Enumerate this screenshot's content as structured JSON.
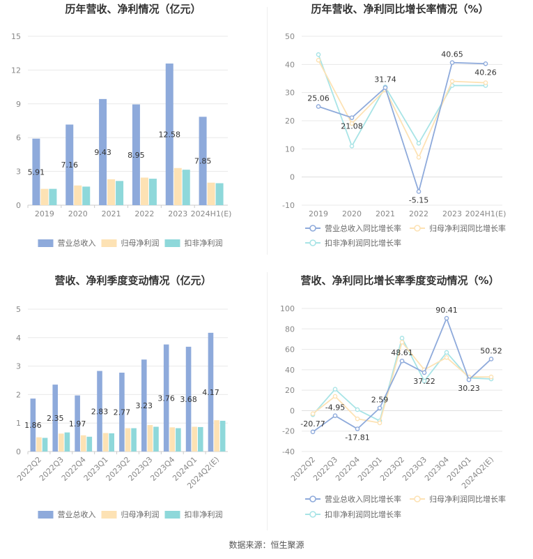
{
  "colors": {
    "revenue": "#8eaadb",
    "net_profit": "#fde2b4",
    "deducted_profit": "#8ed8da",
    "grid": "#e8e8e8",
    "axis": "#cccccc"
  },
  "footer": {
    "source": "数据来源：恒生聚源"
  },
  "chart_data": [
    {
      "id": "annual-bar",
      "type": "bar",
      "title": "历年营收、净利情况（亿元）",
      "categories": [
        "2019",
        "2020",
        "2021",
        "2022",
        "2023",
        "2024H1(E)"
      ],
      "yticks": [
        0,
        3,
        6,
        9,
        12,
        15
      ],
      "ylim": [
        0,
        15
      ],
      "label_series": 0,
      "series": [
        {
          "name": "营业总收入",
          "color": "#8eaadb",
          "values": [
            5.91,
            7.16,
            9.43,
            8.95,
            12.58,
            7.85
          ],
          "labels": [
            "5.91",
            "7.16",
            "9.43",
            "8.95",
            "12.58",
            "7.85"
          ]
        },
        {
          "name": "归母净利润",
          "color": "#fde2b4",
          "values": [
            1.45,
            1.75,
            2.3,
            2.45,
            3.3,
            2.0
          ]
        },
        {
          "name": "扣非净利润",
          "color": "#8ed8da",
          "values": [
            1.45,
            1.65,
            2.15,
            2.35,
            3.15,
            1.95
          ]
        }
      ],
      "legend_position": "bottom"
    },
    {
      "id": "annual-line",
      "type": "line",
      "title": "历年营收、净利同比增长率情况（%）",
      "categories": [
        "2019",
        "2020",
        "2021",
        "2022",
        "2023",
        "2024H1(E)"
      ],
      "yticks": [
        -10,
        0,
        10,
        20,
        30,
        40,
        50
      ],
      "ylim": [
        -10,
        50
      ],
      "label_series": 0,
      "series": [
        {
          "name": "营业总收入同比增长率",
          "color": "#8eaadb",
          "values": [
            25.06,
            21.08,
            31.74,
            -5.15,
            40.65,
            40.26
          ],
          "labels": [
            "25.06",
            "21.08",
            "31.74",
            "-5.15",
            "40.65",
            "40.26"
          ]
        },
        {
          "name": "归母净利润同比增长率",
          "color": "#fde2b4",
          "values": [
            41.5,
            19.0,
            31.0,
            7.0,
            34.0,
            33.5
          ]
        },
        {
          "name": "扣非净利润同比增长率",
          "color": "#a8e4e6",
          "values": [
            43.5,
            11.0,
            32.0,
            12.0,
            32.5,
            32.5
          ]
        }
      ],
      "legend_position": "bottom"
    },
    {
      "id": "quarter-bar",
      "type": "bar",
      "title": "营收、净利季度变动情况（亿元）",
      "categories": [
        "2022Q2",
        "2022Q3",
        "2022Q4",
        "2023Q1",
        "2023Q2",
        "2023Q3",
        "2023Q4",
        "2024Q1",
        "2024Q2(E)"
      ],
      "yticks": [
        0,
        1,
        2,
        3,
        4,
        5
      ],
      "ylim": [
        0,
        5
      ],
      "label_series": 0,
      "series": [
        {
          "name": "营业总收入",
          "color": "#8eaadb",
          "values": [
            1.86,
            2.35,
            1.97,
            2.83,
            2.77,
            3.23,
            3.76,
            3.68,
            4.17
          ],
          "labels": [
            "1.86",
            "2.35",
            "1.97",
            "2.83",
            "2.77",
            "3.23",
            "3.76",
            "3.68",
            "4.17"
          ]
        },
        {
          "name": "归母净利润",
          "color": "#fde2b4",
          "values": [
            0.5,
            0.63,
            0.57,
            0.65,
            0.82,
            0.93,
            0.85,
            0.87,
            1.1
          ]
        },
        {
          "name": "扣非净利润",
          "color": "#8ed8da",
          "values": [
            0.48,
            0.67,
            0.52,
            0.64,
            0.82,
            0.87,
            0.82,
            0.86,
            1.08
          ]
        }
      ],
      "legend_position": "bottom"
    },
    {
      "id": "quarter-line",
      "type": "line",
      "title": "营收、净利同比增长率季度变动情况（%）",
      "categories": [
        "2022Q2",
        "2022Q3",
        "2022Q4",
        "2023Q1",
        "2023Q2",
        "2023Q3",
        "2023Q4",
        "2024Q1",
        "2024Q2(E)"
      ],
      "yticks": [
        -40,
        -20,
        0,
        20,
        40,
        60,
        80,
        100
      ],
      "ylim": [
        -40,
        100
      ],
      "label_series": 0,
      "series": [
        {
          "name": "营业总收入同比增长率",
          "color": "#8eaadb",
          "values": [
            -20.77,
            -4.95,
            -17.81,
            2.59,
            48.61,
            37.22,
            90.41,
            30.23,
            50.52
          ],
          "labels": [
            "-20.77",
            "-4.95",
            "-17.81",
            "2.59",
            "48.61",
            "37.22",
            "90.41",
            "30.23",
            "50.52"
          ]
        },
        {
          "name": "归母净利润同比增长率",
          "color": "#fde2b4",
          "values": [
            -3,
            14,
            -8,
            -12,
            67,
            40,
            52,
            33,
            33
          ]
        },
        {
          "name": "扣非净利润同比增长率",
          "color": "#a8e4e6",
          "values": [
            -4,
            21,
            1,
            -10,
            71,
            29,
            57,
            32,
            31
          ]
        }
      ],
      "legend_position": "bottom"
    }
  ]
}
